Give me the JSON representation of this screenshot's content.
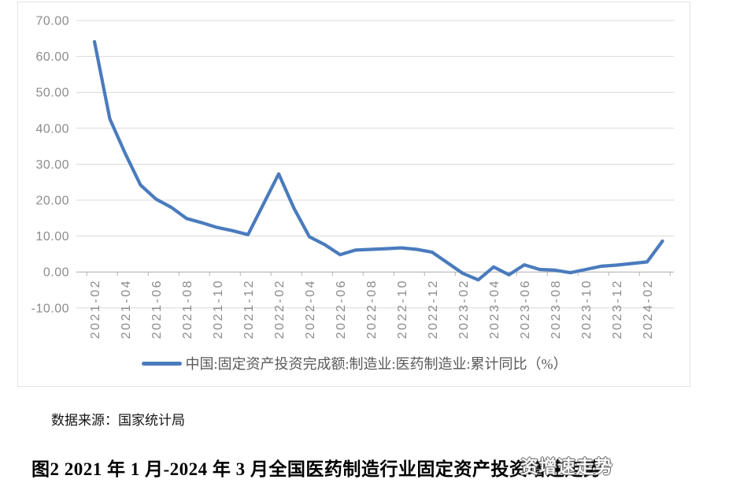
{
  "chart_data": {
    "type": "line",
    "title": "",
    "xlabel": "",
    "ylabel": "",
    "ylim": [
      -10,
      70
    ],
    "ytick_labels": [
      "70.00",
      "60.00",
      "50.00",
      "40.00",
      "30.00",
      "20.00",
      "10.00",
      "0.00",
      "-10.00"
    ],
    "x_label_every": 2,
    "grid": true,
    "legend_position": "bottom",
    "categories": [
      "2021-02",
      "2021-03",
      "2021-04",
      "2021-05",
      "2021-06",
      "2021-07",
      "2021-08",
      "2021-09",
      "2021-10",
      "2021-11",
      "2021-12",
      "2022-01",
      "2022-02",
      "2022-03",
      "2022-04",
      "2022-05",
      "2022-06",
      "2022-07",
      "2022-08",
      "2022-09",
      "2022-10",
      "2022-11",
      "2022-12",
      "2023-01",
      "2023-02",
      "2023-03",
      "2023-04",
      "2023-05",
      "2023-06",
      "2023-07",
      "2023-08",
      "2023-09",
      "2023-10",
      "2023-11",
      "2023-12",
      "2024-01",
      "2024-02",
      "2024-03"
    ],
    "series": [
      {
        "name": "中国:固定资产投资完成额:制造业:医药制造业:累计同比（%）",
        "color": "#4a7bbd",
        "values": [
          64.1,
          42.6,
          33.0,
          24.2,
          20.3,
          18.0,
          14.9,
          13.7,
          12.4,
          11.5,
          10.4,
          null,
          27.3,
          17.7,
          9.8,
          7.6,
          4.8,
          6.1,
          6.3,
          6.5,
          6.7,
          6.3,
          5.5,
          null,
          -0.4,
          -2.2,
          1.4,
          -0.8,
          2.0,
          0.7,
          0.5,
          -0.2,
          0.7,
          1.6,
          1.9,
          null,
          2.8,
          8.6
        ]
      }
    ]
  },
  "legend": {
    "label": "中国:固定资产投资完成额:制造业:医药制造业:累计同比（%）"
  },
  "source_note": "数据来源：国家统计局",
  "caption": {
    "main": "图2 2021 年 1 月-2024 年 3 月全国医药制造行业固定资产投",
    "tail": "资增速走势",
    "overlay_text": "资增速走势"
  },
  "colors": {
    "line": "#4a7bbd",
    "gridline": "#d9d9d9",
    "axis_line": "#b3b3b3",
    "axis_text": "#8c8c8c",
    "legend_text": "#595959",
    "frame_border": "#e3e3e3"
  }
}
